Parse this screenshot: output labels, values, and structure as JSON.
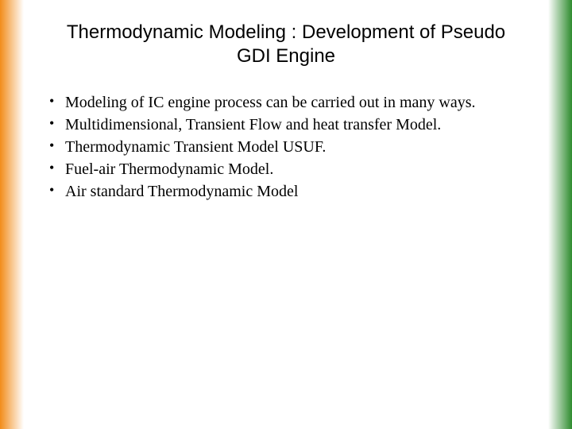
{
  "colors": {
    "left_gradient": "#f28c1a",
    "right_gradient": "#2e8b2e",
    "background": "#ffffff",
    "text": "#000000"
  },
  "title": {
    "text": "Thermodynamic Modeling : Development of Pseudo GDI Engine",
    "font_family": "Arial",
    "font_size_pt": 24,
    "font_weight": 400,
    "align": "center"
  },
  "bullets": {
    "font_family": "Times New Roman",
    "font_size_pt": 20,
    "items": [
      "Modeling of IC engine process can be carried out in many ways.",
      "Multidimensional, Transient Flow and heat transfer Model.",
      "Thermodynamic Transient  Model USUF.",
      "Fuel-air Thermodynamic Model.",
      "Air standard Thermodynamic Model"
    ]
  }
}
